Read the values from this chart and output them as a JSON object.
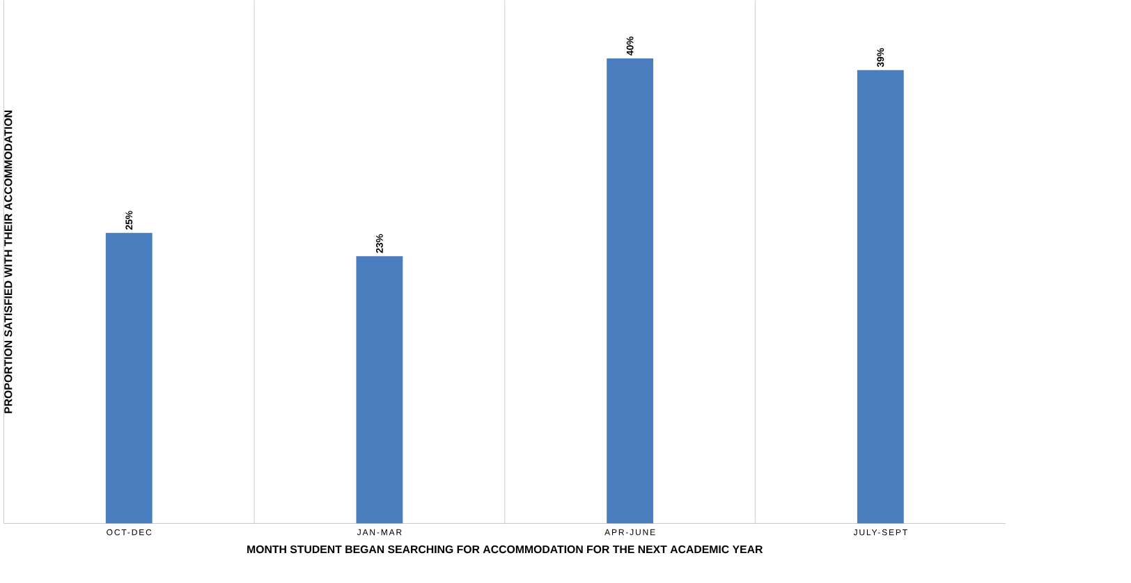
{
  "chart_data": {
    "type": "bar",
    "xlabel": "MONTH STUDENT BEGAN SEARCHING FOR ACCOMMODATION FOR THE NEXT ACADEMIC YEAR",
    "ylabel": "PROPORTION SATISFIED WITH THEIR ACCOMMODATION",
    "categories": [
      "OCT-DEC",
      "JAN-MAR",
      "APR-JUNE",
      "JULY-SEPT"
    ],
    "values": [
      25,
      23,
      40,
      39
    ],
    "value_labels": [
      "25%",
      "23%",
      "40%",
      "39%"
    ],
    "color": "#4a7ebf",
    "ylim": [
      0,
      45
    ],
    "tick_labels": "x",
    "grid": "x"
  }
}
